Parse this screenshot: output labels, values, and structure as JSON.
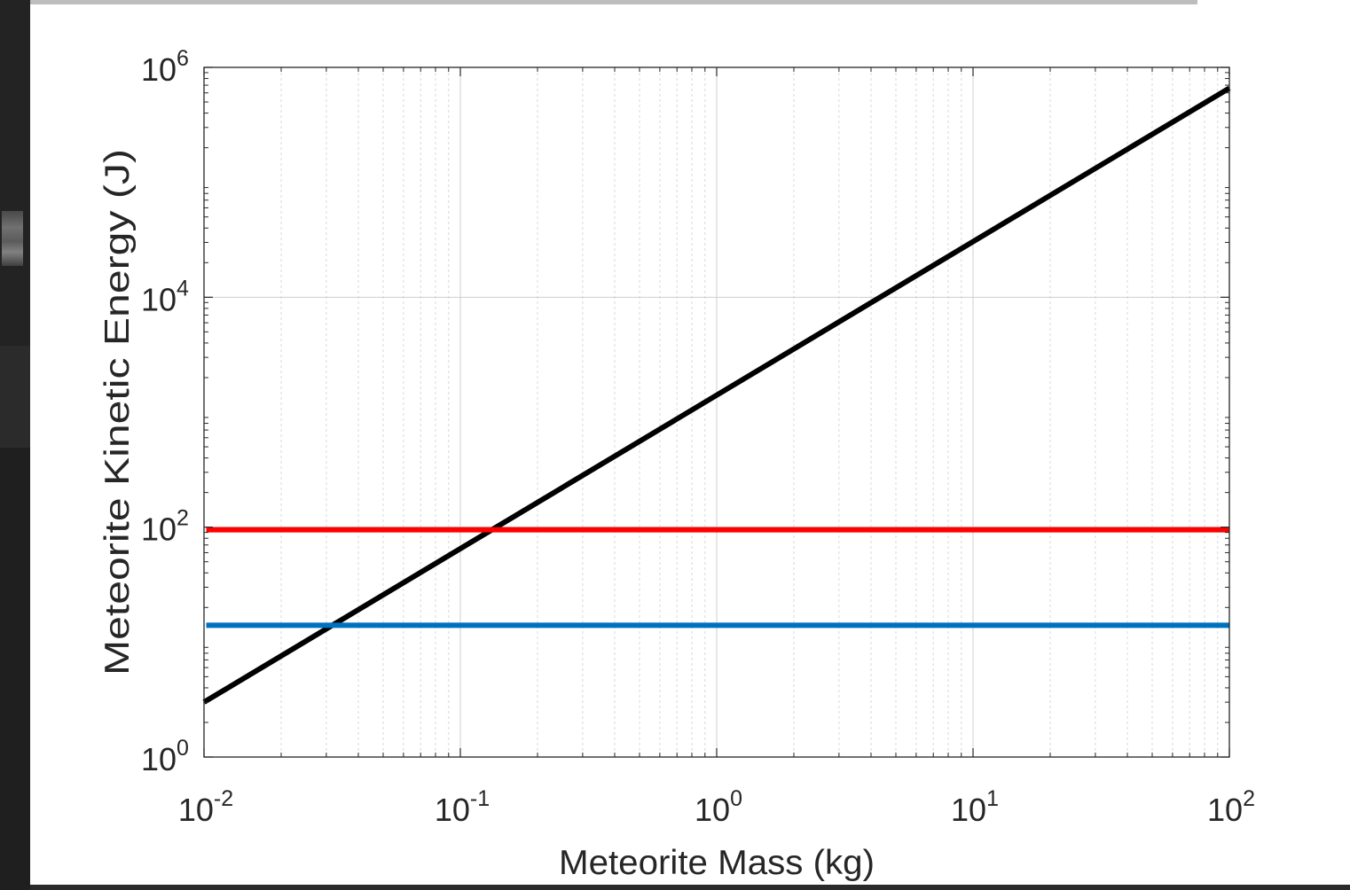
{
  "chart_data": {
    "type": "line",
    "title": "",
    "xlabel": "Meteorite Mass (kg)",
    "ylabel": "Meteorite Kinetic Energy (J)",
    "xscale": "log",
    "yscale": "log",
    "xlim": [
      0.01,
      100
    ],
    "ylim": [
      1,
      1000000
    ],
    "grid": true,
    "legend": "none",
    "x_ticks": [
      {
        "base": "10",
        "exp": "-2",
        "value": 0.01
      },
      {
        "base": "10",
        "exp": "-1",
        "value": 0.1
      },
      {
        "base": "10",
        "exp": "0",
        "value": 1
      },
      {
        "base": "10",
        "exp": "1",
        "value": 10
      },
      {
        "base": "10",
        "exp": "2",
        "value": 100
      }
    ],
    "y_ticks": [
      {
        "base": "10",
        "exp": "0",
        "value": 1
      },
      {
        "base": "10",
        "exp": "2",
        "value": 100
      },
      {
        "base": "10",
        "exp": "4",
        "value": 10000
      },
      {
        "base": "10",
        "exp": "6",
        "value": 1000000
      }
    ],
    "series": [
      {
        "color": "#000000",
        "x": [
          0.01,
          100
        ],
        "y": [
          3,
          660000
        ]
      },
      {
        "color": "#ff0000",
        "x": [
          0.0102,
          100
        ],
        "y": [
          95,
          95
        ]
      },
      {
        "color": "#0072bd",
        "x": [
          0.0102,
          100
        ],
        "y": [
          14,
          14
        ]
      }
    ]
  }
}
